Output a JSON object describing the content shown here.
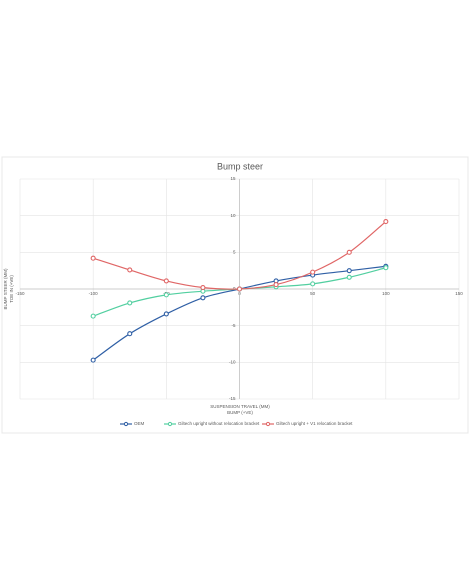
{
  "chart_data": {
    "type": "line",
    "title": "Bump steer",
    "x_label": [
      "SUSPENSION TRAVEL (MM)",
      "BUMP (+VE)"
    ],
    "y_label": [
      "BUMP STEER (MM)",
      "TOE IN (+VE)"
    ],
    "x": [
      -100,
      -75,
      -50,
      -25,
      0,
      25,
      50,
      75,
      100
    ],
    "series": [
      {
        "name": "OEM",
        "color": "#2f5fa5",
        "values": [
          -9.7,
          -6.1,
          -3.4,
          -1.2,
          0,
          1.1,
          1.9,
          2.5,
          3.1
        ]
      },
      {
        "name": "Giltech upright without relocation bracket",
        "color": "#52cfa0",
        "values": [
          -3.7,
          -1.9,
          -0.8,
          -0.3,
          0,
          0.3,
          0.7,
          1.6,
          2.9
        ]
      },
      {
        "name": "Giltech upright + V1 relocation bracket",
        "color": "#e06666",
        "values": [
          4.2,
          2.6,
          1.1,
          0.2,
          0,
          0.6,
          2.3,
          5.0,
          9.2
        ]
      }
    ],
    "xlim": [
      -150,
      150
    ],
    "xticks": [
      -150,
      -100,
      -50,
      0,
      50,
      100,
      150
    ],
    "ylim": [
      -15,
      15
    ],
    "yticks": [
      -15,
      -10,
      -5,
      0,
      5,
      10,
      15
    ],
    "grid": true,
    "legend": "bottom"
  }
}
